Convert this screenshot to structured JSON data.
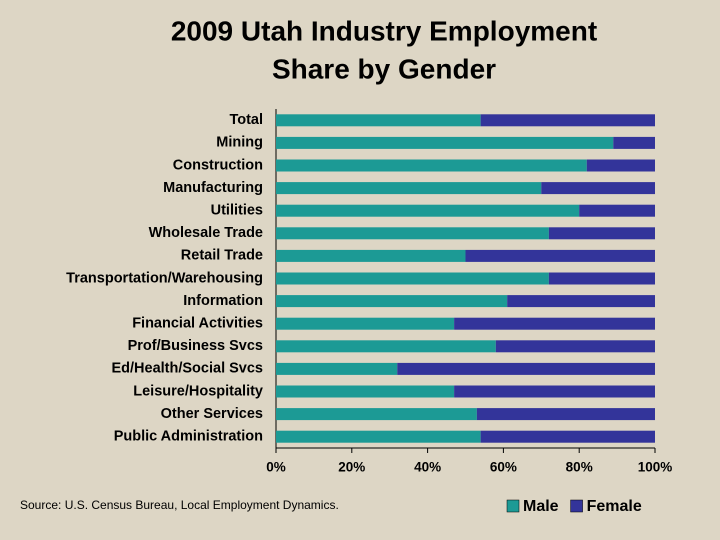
{
  "chart_data": {
    "type": "stacked-bar-horizontal",
    "title": "2009 Utah Industry Employment",
    "subtitle": "Share by Gender",
    "categories": [
      "Total",
      "Mining",
      "Construction",
      "Manufacturing",
      "Utilities",
      "Wholesale Trade",
      "Retail Trade",
      "Transportation/Warehousing",
      "Information",
      "Financial Activities",
      "Prof/Business Svcs",
      "Ed/Health/Social Svcs",
      "Leisure/Hospitality",
      "Other Services",
      "Public Administration"
    ],
    "series": [
      {
        "name": "Male",
        "color": "#1c9a95",
        "values": [
          54,
          89,
          82,
          70,
          80,
          72,
          50,
          72,
          61,
          47,
          58,
          32,
          47,
          53,
          54
        ]
      },
      {
        "name": "Female",
        "color": "#33349a",
        "values": [
          46,
          11,
          18,
          30,
          20,
          28,
          50,
          28,
          39,
          53,
          42,
          68,
          53,
          47,
          46
        ]
      }
    ],
    "xlim": [
      0,
      100
    ],
    "xticks": [
      {
        "value": 0,
        "label": "0%"
      },
      {
        "value": 20,
        "label": "20%"
      },
      {
        "value": 40,
        "label": "40%"
      },
      {
        "value": 60,
        "label": "60%"
      },
      {
        "value": 80,
        "label": "80%"
      },
      {
        "value": 100,
        "label": "100%"
      }
    ],
    "source": "Source: U.S. Census Bureau, Local Employment Dynamics."
  }
}
